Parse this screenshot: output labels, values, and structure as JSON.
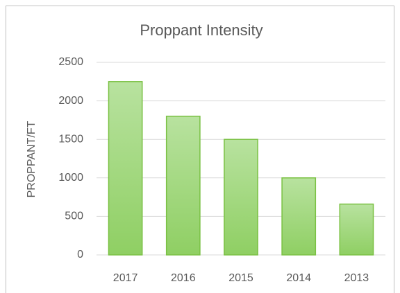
{
  "chart_data": {
    "type": "bar",
    "title": "Proppant Intensity",
    "y_label": "PROPPANT/FT",
    "categories": [
      "2017",
      "2016",
      "2015",
      "2014",
      "2013"
    ],
    "values": [
      2250,
      1800,
      1500,
      1000,
      660
    ],
    "color": "#7ac143",
    "ylim": [
      0,
      2500
    ],
    "yticks": [
      0,
      500,
      1000,
      1500,
      2000,
      2500
    ],
    "grid": true
  }
}
